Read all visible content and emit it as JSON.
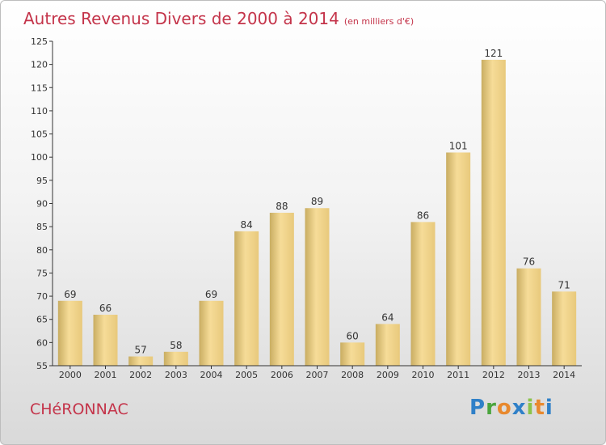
{
  "header": {
    "title": "Autres Revenus Divers de 2000 à 2014",
    "subtitle": "(en milliers d'€)"
  },
  "footer": {
    "place": "CHéRONNAC"
  },
  "logo": {
    "letters": [
      {
        "char": "P",
        "color": "#2f80c8"
      },
      {
        "char": "r",
        "color": "#4aa53e"
      },
      {
        "char": "o",
        "color": "#e8892e"
      },
      {
        "char": "x",
        "color": "#2f80c8"
      },
      {
        "char": "i",
        "color": "#8bc34a"
      },
      {
        "char": "t",
        "color": "#e8892e"
      },
      {
        "char": "i",
        "color": "#2f80c8"
      }
    ]
  },
  "colors": {
    "title": "#c4344a",
    "bar_light": "#f6dc98",
    "bar_dark": "#c9ad62"
  },
  "chart_data": {
    "type": "bar",
    "categories": [
      "2000",
      "2001",
      "2002",
      "2003",
      "2004",
      "2005",
      "2006",
      "2007",
      "2008",
      "2009",
      "2010",
      "2011",
      "2012",
      "2013",
      "2014"
    ],
    "values": [
      69,
      66,
      57,
      58,
      69,
      84,
      88,
      89,
      60,
      64,
      86,
      101,
      121,
      76,
      71
    ],
    "ylim": [
      55,
      125
    ],
    "yticks": [
      55,
      60,
      65,
      70,
      75,
      80,
      85,
      90,
      95,
      100,
      105,
      110,
      115,
      120,
      125
    ],
    "grid": false
  }
}
